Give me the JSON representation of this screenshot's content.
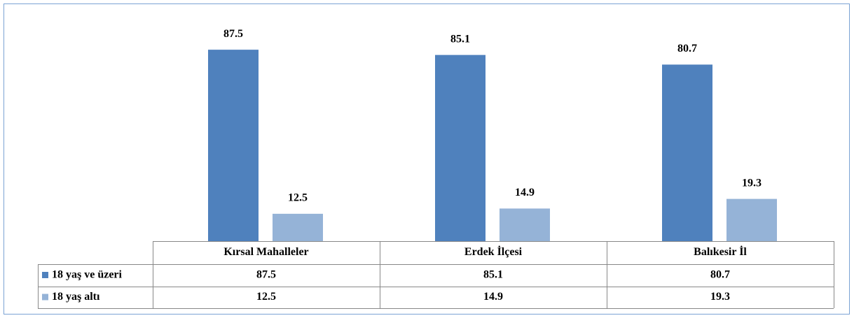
{
  "chart_data": {
    "type": "bar",
    "categories": [
      "Kırsal Mahalleler",
      "Erdek İlçesi",
      "Balıkesir İl"
    ],
    "series": [
      {
        "name": "18 yaş ve üzeri",
        "color": "#4f81bd",
        "values": [
          87.5,
          85.1,
          80.7
        ]
      },
      {
        "name": "18 yaş altı",
        "color": "#95b3d7",
        "values": [
          12.5,
          14.9,
          19.3
        ]
      }
    ],
    "ylim": [
      0,
      100
    ]
  }
}
